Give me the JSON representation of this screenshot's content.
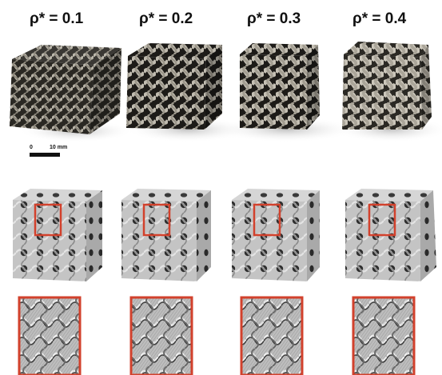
{
  "columns": [
    {
      "label": "ρ* = 0.1"
    },
    {
      "label": "ρ* = 0.2"
    },
    {
      "label": "ρ* = 0.3"
    },
    {
      "label": "ρ* = 0.4"
    }
  ],
  "scale_bar": {
    "zero_label": "0",
    "end_label": "10 mm"
  },
  "colors": {
    "highlight_box": "#d2412c",
    "metal": "#8d8a83",
    "render_gray": "#9a9a9a"
  }
}
